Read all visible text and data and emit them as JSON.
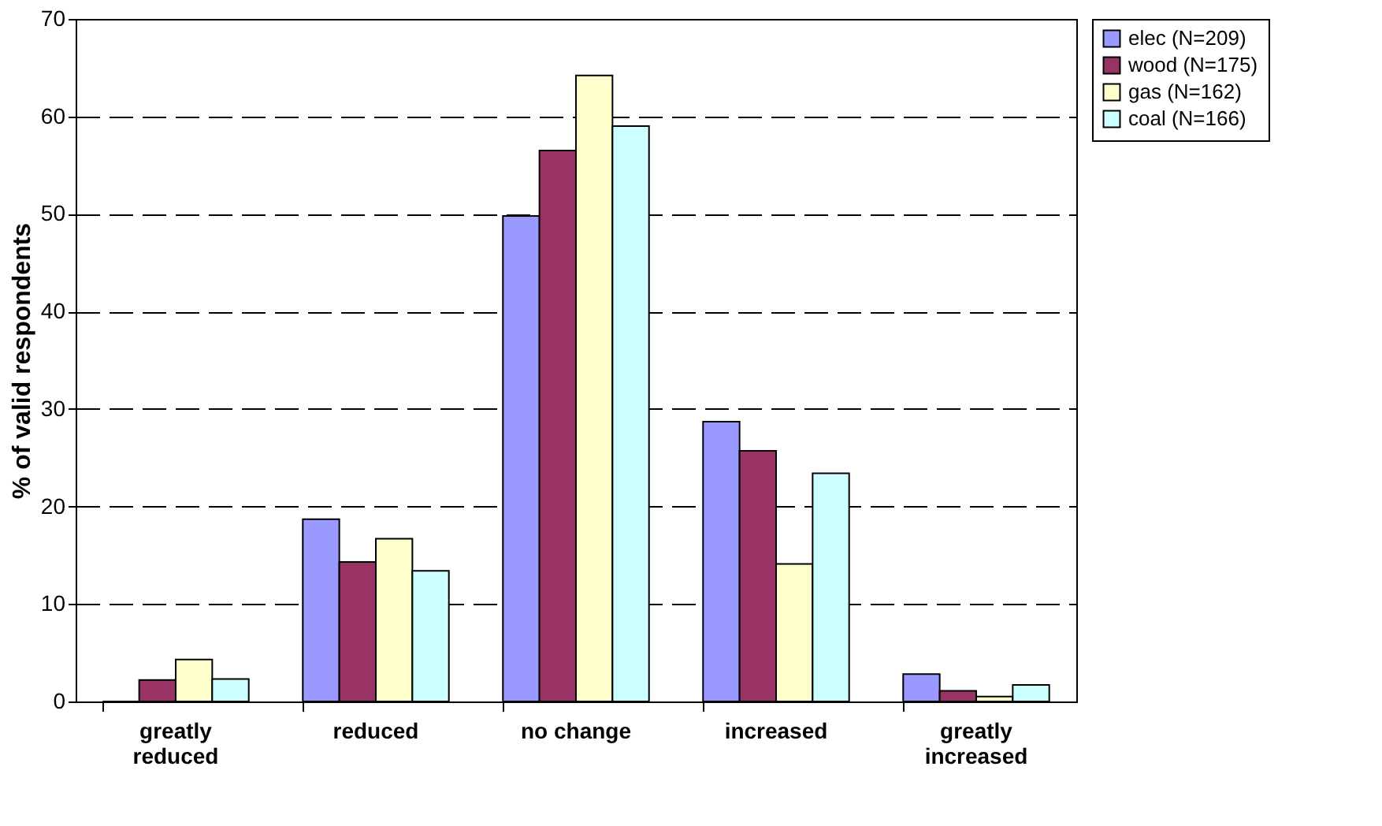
{
  "chart_data": {
    "type": "bar",
    "ylabel": "% of valid respondents",
    "categories": [
      "greatly reduced",
      "reduced",
      "no change",
      "increased",
      "greatly increased"
    ],
    "series": [
      {
        "name": "elec (N=209)",
        "color": "#9999ff",
        "values": [
          0,
          18.7,
          49.8,
          28.7,
          2.8
        ]
      },
      {
        "name": "wood (N=175)",
        "color": "#993366",
        "values": [
          2.2,
          14.3,
          56.5,
          25.7,
          1.1
        ]
      },
      {
        "name": "gas (N=162)",
        "color": "#ffffcc",
        "values": [
          4.3,
          16.7,
          64.2,
          14.1,
          0.5
        ]
      },
      {
        "name": "coal (N=166)",
        "color": "#ccffff",
        "values": [
          2.3,
          13.4,
          59.0,
          23.4,
          1.7
        ]
      }
    ],
    "ylim": [
      0,
      70
    ],
    "yticks": [
      0,
      10,
      20,
      30,
      40,
      50,
      60,
      70
    ],
    "grid": "y",
    "legend": "right"
  }
}
